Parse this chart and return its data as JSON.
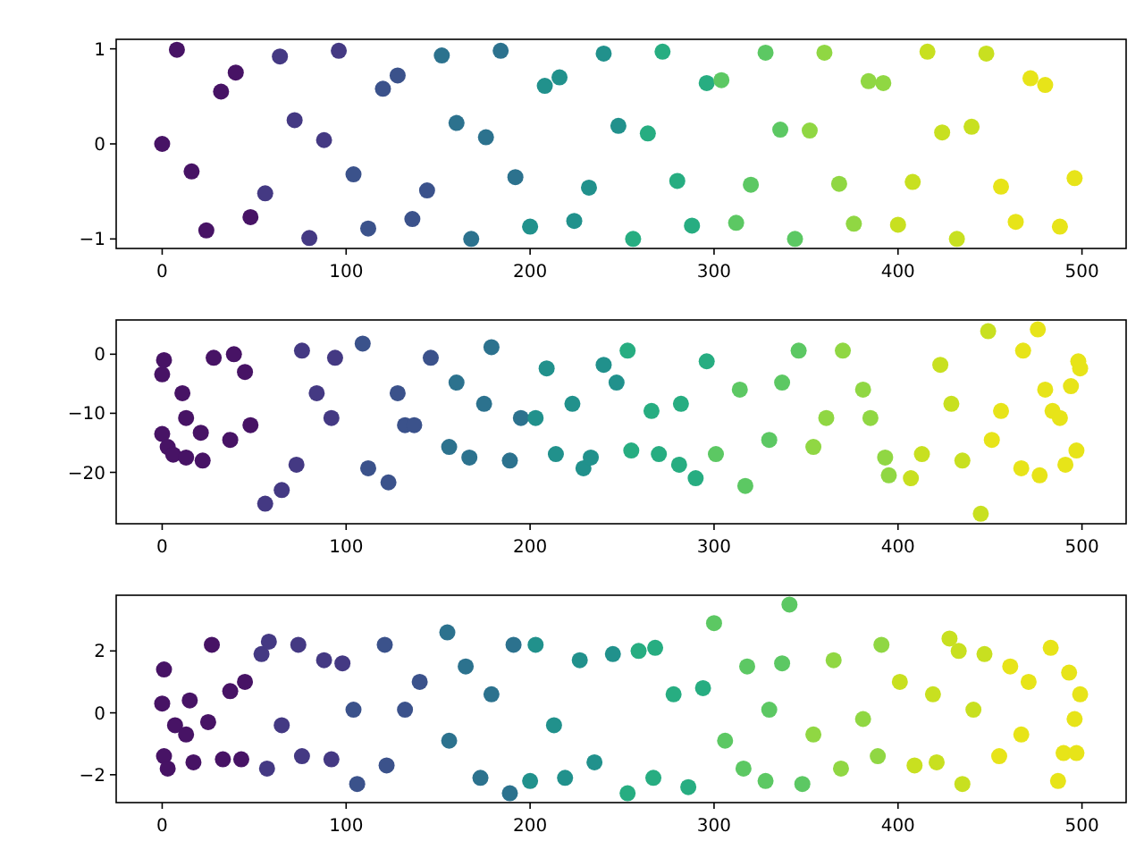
{
  "chart_data": [
    {
      "type": "scatter",
      "marker": "circle",
      "xlim": [
        -25,
        524
      ],
      "xticks": [
        0,
        100,
        200,
        300,
        400,
        500
      ],
      "ylim": [
        -1.1,
        1.1
      ],
      "yticks": [
        {
          "value": -1,
          "label": "−1"
        },
        0,
        1
      ],
      "x": [
        0,
        8,
        16,
        24,
        32,
        40,
        48,
        56,
        64,
        72,
        80,
        88,
        96,
        104,
        112,
        120,
        128,
        136,
        144,
        152,
        160,
        168,
        176,
        184,
        192,
        200,
        208,
        216,
        224,
        232,
        240,
        248,
        256,
        264,
        272,
        280,
        288,
        296,
        304,
        312,
        320,
        328,
        336,
        344,
        352,
        360,
        368,
        376,
        384,
        392,
        400,
        408,
        416,
        424,
        432,
        440,
        448,
        456,
        464,
        472,
        480,
        488,
        496
      ],
      "values": [
        0,
        0.99,
        -0.29,
        -0.91,
        0.55,
        0.75,
        -0.77,
        -0.52,
        0.92,
        0.25,
        -0.99,
        0.04,
        0.98,
        -0.32,
        -0.89,
        0.58,
        0.72,
        -0.79,
        -0.49,
        0.93,
        0.22,
        -1.0,
        0.07,
        0.98,
        -0.35,
        -0.87,
        0.61,
        0.7,
        -0.81,
        -0.46,
        0.95,
        0.19,
        -1.0,
        0.11,
        0.97,
        -0.39,
        -0.86,
        0.64,
        0.67,
        -0.83,
        -0.43,
        0.96,
        0.15,
        -1.0,
        0.14,
        0.96,
        -0.42,
        -0.84,
        0.66,
        0.64,
        -0.85,
        -0.4,
        0.97,
        0.12,
        -1.0,
        0.18,
        0.95,
        -0.45,
        -0.82,
        0.69,
        0.62,
        -0.87,
        -0.36
      ],
      "colors": [
        "#471365",
        "#471365",
        "#471365",
        "#471365",
        "#471365",
        "#471365",
        "#471365",
        "#443983",
        "#443983",
        "#443983",
        "#443983",
        "#443983",
        "#443983",
        "#3b528b",
        "#3b528b",
        "#3b528b",
        "#3b528b",
        "#3b528b",
        "#3b528b",
        "#2c728e",
        "#2c728e",
        "#2c728e",
        "#2c728e",
        "#2c728e",
        "#2c728e",
        "#21918c",
        "#21918c",
        "#21918c",
        "#21918c",
        "#21918c",
        "#21918c",
        "#21918c",
        "#27ad81",
        "#27ad81",
        "#27ad81",
        "#27ad81",
        "#27ad81",
        "#27ad81",
        "#5cc863",
        "#5cc863",
        "#5cc863",
        "#5cc863",
        "#5cc863",
        "#5cc863",
        "#90d743",
        "#90d743",
        "#90d743",
        "#90d743",
        "#90d743",
        "#90d743",
        "#c8e020",
        "#c8e020",
        "#c8e020",
        "#c8e020",
        "#c8e020",
        "#c8e020",
        "#c8e020",
        "#e7e419",
        "#e7e419",
        "#e7e419",
        "#e7e419",
        "#e7e419",
        "#e7e419"
      ]
    },
    {
      "type": "scatter",
      "marker": "circle",
      "xlim": [
        -25,
        524
      ],
      "xticks": [
        0,
        100,
        200,
        300,
        400,
        500
      ],
      "ylim": [
        -28.7,
        5.8
      ],
      "yticks": [
        {
          "value": -20,
          "label": "−20"
        },
        {
          "value": -10,
          "label": "−10"
        },
        0
      ],
      "x": [
        0,
        0,
        1,
        3,
        6,
        11,
        13,
        13,
        21,
        22,
        28,
        37,
        39,
        45,
        48,
        56,
        65,
        73,
        76,
        84,
        92,
        94,
        109,
        112,
        123,
        128,
        132,
        137,
        146,
        156,
        160,
        167,
        175,
        179,
        189,
        195,
        203,
        209,
        214,
        223,
        229,
        233,
        240,
        247,
        253,
        255,
        266,
        270,
        281,
        282,
        290,
        296,
        301,
        314,
        317,
        330,
        337,
        346,
        354,
        361,
        370,
        381,
        385,
        393,
        395,
        407,
        413,
        423,
        429,
        435,
        445,
        449,
        451,
        456,
        467,
        468,
        476,
        477,
        480,
        484,
        488,
        491,
        494,
        497,
        498,
        499
      ],
      "values": [
        -3.4,
        -13.5,
        -1,
        -15.7,
        -17,
        -6.6,
        -17.5,
        -10.8,
        -13.3,
        -18,
        -0.6,
        -14.5,
        0,
        -3,
        -12,
        -25.3,
        -23,
        -18.7,
        0.6,
        -6.6,
        -10.8,
        -0.6,
        1.8,
        -19.3,
        -21.7,
        -6.6,
        -12,
        -12,
        -0.6,
        -15.7,
        -4.8,
        -17.5,
        -8.4,
        1.2,
        -18,
        -10.8,
        -10.8,
        -2.4,
        -16.9,
        -8.4,
        -19.3,
        -17.5,
        -1.8,
        -4.8,
        0.6,
        -16.3,
        -9.6,
        -16.9,
        -18.7,
        -8.4,
        -21,
        -1.2,
        -16.9,
        -6,
        -22.3,
        -14.5,
        -4.8,
        0.6,
        -15.7,
        -10.8,
        0.6,
        -6,
        -10.8,
        -17.5,
        -20.5,
        -21,
        -16.9,
        -1.8,
        -8.4,
        -18,
        -27,
        3.9,
        -14.5,
        -9.6,
        -19.3,
        0.6,
        4.2,
        -20.5,
        -6,
        -9.6,
        -10.8,
        -18.7,
        -5.4,
        -16.3,
        -1.2,
        -2.4
      ],
      "colors": [
        "#471365",
        "#471365",
        "#471365",
        "#471365",
        "#471365",
        "#471365",
        "#471365",
        "#471365",
        "#471365",
        "#471365",
        "#471365",
        "#471365",
        "#471365",
        "#471365",
        "#471365",
        "#443983",
        "#443983",
        "#443983",
        "#443983",
        "#443983",
        "#443983",
        "#443983",
        "#3b528b",
        "#3b528b",
        "#3b528b",
        "#3b528b",
        "#3b528b",
        "#3b528b",
        "#3b528b",
        "#2c728e",
        "#2c728e",
        "#2c728e",
        "#2c728e",
        "#2c728e",
        "#2c728e",
        "#2c728e",
        "#21918c",
        "#21918c",
        "#21918c",
        "#21918c",
        "#21918c",
        "#21918c",
        "#21918c",
        "#21918c",
        "#27ad81",
        "#27ad81",
        "#27ad81",
        "#27ad81",
        "#27ad81",
        "#27ad81",
        "#27ad81",
        "#27ad81",
        "#5cc863",
        "#5cc863",
        "#5cc863",
        "#5cc863",
        "#5cc863",
        "#5cc863",
        "#90d743",
        "#90d743",
        "#90d743",
        "#90d743",
        "#90d743",
        "#90d743",
        "#90d743",
        "#c8e020",
        "#c8e020",
        "#c8e020",
        "#c8e020",
        "#c8e020",
        "#c8e020",
        "#c8e020",
        "#e7e419",
        "#e7e419",
        "#e7e419",
        "#e7e419",
        "#e7e419",
        "#e7e419",
        "#e7e419",
        "#e7e419",
        "#e7e419",
        "#e7e419",
        "#e7e419",
        "#e7e419",
        "#e7e419",
        "#e7e419"
      ]
    },
    {
      "type": "scatter",
      "marker": "circle",
      "xlim": [
        -25,
        524
      ],
      "xticks": [
        0,
        100,
        200,
        300,
        400,
        500
      ],
      "ylim": [
        -2.9,
        3.8
      ],
      "yticks": [
        {
          "value": -2,
          "label": "−2"
        },
        0,
        2
      ],
      "x": [
        0,
        1,
        1,
        3,
        7,
        13,
        15,
        17,
        25,
        27,
        33,
        37,
        43,
        45,
        54,
        57,
        58,
        65,
        74,
        76,
        88,
        92,
        98,
        104,
        106,
        121,
        122,
        132,
        140,
        155,
        156,
        165,
        173,
        179,
        189,
        191,
        200,
        203,
        213,
        219,
        227,
        235,
        245,
        253,
        259,
        267,
        268,
        278,
        286,
        294,
        300,
        306,
        316,
        318,
        328,
        330,
        337,
        341,
        348,
        354,
        365,
        369,
        381,
        389,
        391,
        401,
        409,
        419,
        421,
        428,
        433,
        435,
        441,
        447,
        455,
        461,
        467,
        471,
        483,
        487,
        490,
        493,
        496,
        497,
        499
      ],
      "values": [
        0.3,
        1.4,
        -1.4,
        -1.8,
        -0.4,
        -0.7,
        0.4,
        -1.6,
        -0.3,
        2.2,
        -1.5,
        0.7,
        -1.5,
        1.0,
        1.9,
        -1.8,
        2.3,
        -0.4,
        2.2,
        -1.4,
        1.7,
        -1.5,
        1.6,
        0.1,
        -2.3,
        2.2,
        -1.7,
        0.1,
        1.0,
        2.6,
        -0.9,
        1.5,
        -2.1,
        0.6,
        -2.6,
        2.2,
        -2.2,
        2.2,
        -0.4,
        -2.1,
        1.7,
        -1.6,
        1.9,
        -2.6,
        2.0,
        -2.1,
        2.1,
        0.6,
        -2.4,
        0.8,
        2.9,
        -0.9,
        -1.8,
        1.5,
        -2.2,
        0.1,
        1.6,
        3.5,
        -2.3,
        -0.7,
        1.7,
        -1.8,
        -0.2,
        -1.4,
        2.2,
        1.0,
        -1.7,
        0.6,
        -1.6,
        2.4,
        2.0,
        -2.3,
        0.1,
        1.9,
        -1.4,
        1.5,
        -0.7,
        1.0,
        2.1,
        -2.2,
        -1.3,
        1.3,
        -0.2,
        -1.3,
        0.6
      ],
      "colors": [
        "#471365",
        "#471365",
        "#471365",
        "#471365",
        "#471365",
        "#471365",
        "#471365",
        "#471365",
        "#471365",
        "#471365",
        "#471365",
        "#471365",
        "#471365",
        "#471365",
        "#443983",
        "#443983",
        "#443983",
        "#443983",
        "#443983",
        "#443983",
        "#443983",
        "#443983",
        "#443983",
        "#3b528b",
        "#3b528b",
        "#3b528b",
        "#3b528b",
        "#3b528b",
        "#3b528b",
        "#2c728e",
        "#2c728e",
        "#2c728e",
        "#2c728e",
        "#2c728e",
        "#2c728e",
        "#2c728e",
        "#21918c",
        "#21918c",
        "#21918c",
        "#21918c",
        "#21918c",
        "#21918c",
        "#21918c",
        "#27ad81",
        "#27ad81",
        "#27ad81",
        "#27ad81",
        "#27ad81",
        "#27ad81",
        "#27ad81",
        "#5cc863",
        "#5cc863",
        "#5cc863",
        "#5cc863",
        "#5cc863",
        "#5cc863",
        "#5cc863",
        "#5cc863",
        "#5cc863",
        "#90d743",
        "#90d743",
        "#90d743",
        "#90d743",
        "#90d743",
        "#90d743",
        "#c8e020",
        "#c8e020",
        "#c8e020",
        "#c8e020",
        "#c8e020",
        "#c8e020",
        "#c8e020",
        "#c8e020",
        "#c8e020",
        "#e7e419",
        "#e7e419",
        "#e7e419",
        "#e7e419",
        "#e7e419",
        "#e7e419",
        "#e7e419",
        "#e7e419",
        "#e7e419",
        "#e7e419",
        "#e7e419"
      ]
    }
  ]
}
